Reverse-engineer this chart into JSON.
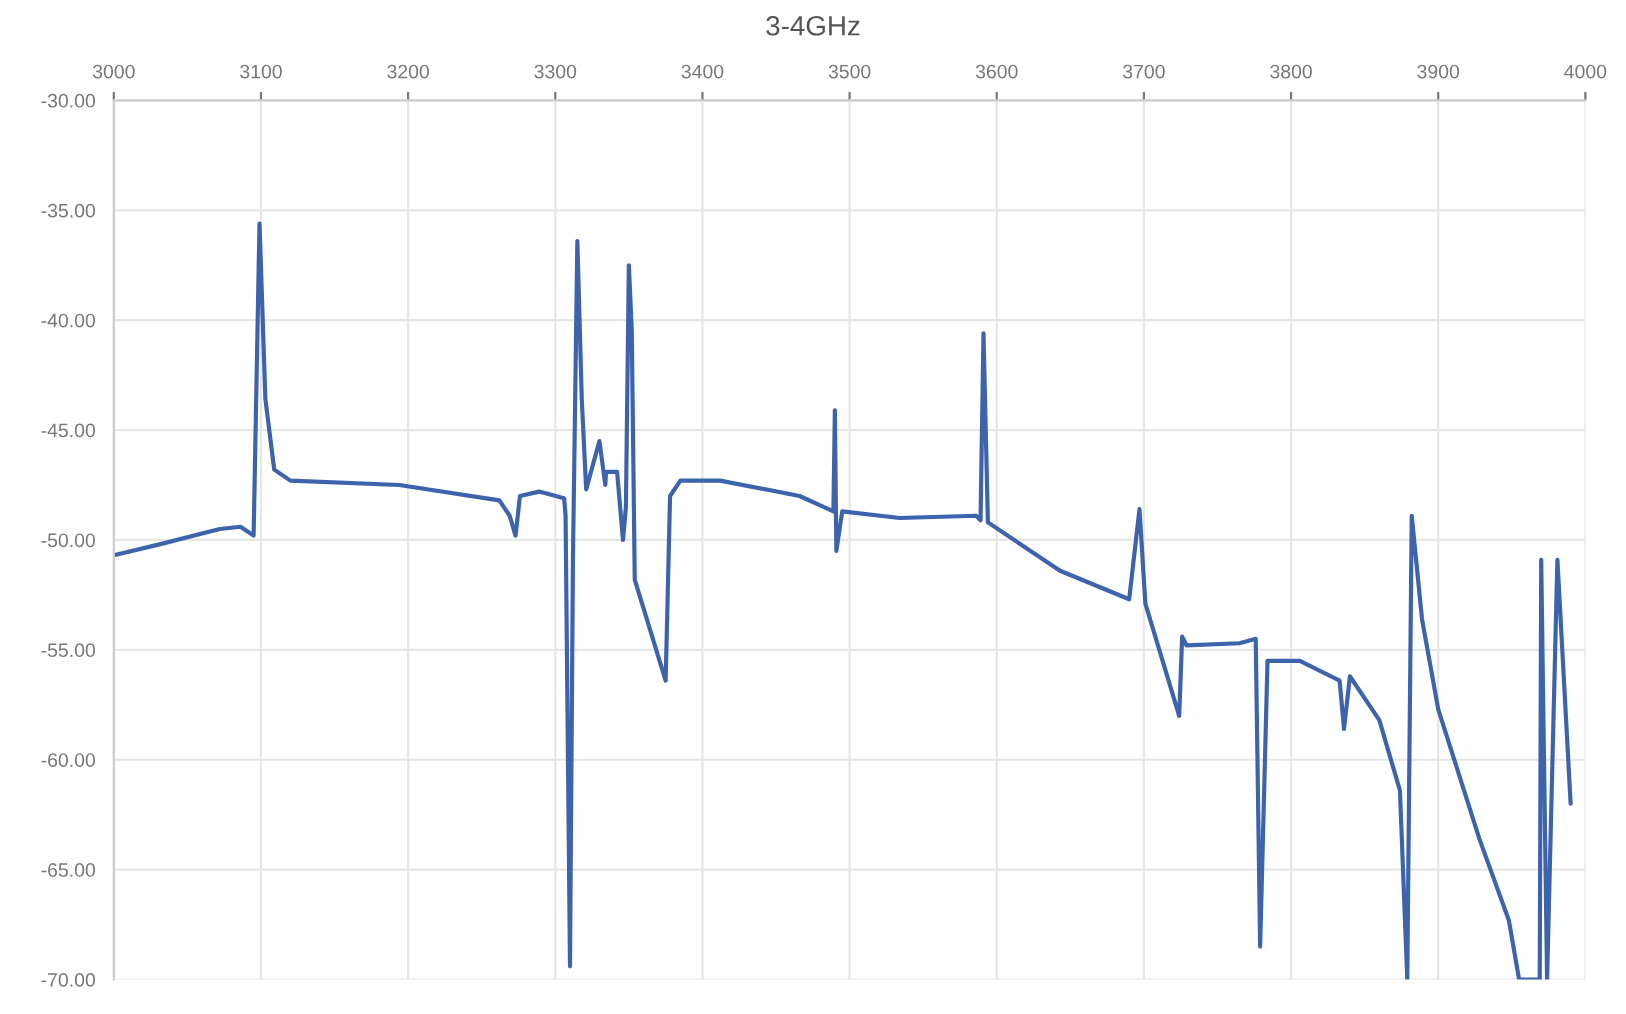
{
  "chart_data": {
    "type": "line",
    "title": "3-4GHz",
    "x": [
      3000,
      3031,
      3072,
      3086,
      3095,
      3099,
      3103,
      3109,
      3120,
      3194,
      3262,
      3269,
      3273,
      3276,
      3289,
      3306,
      3307,
      3310,
      3312,
      3315,
      3318,
      3321,
      3330,
      3334,
      3334.5,
      3342,
      3346,
      3348,
      3350,
      3352,
      3354,
      3375,
      3378,
      3385,
      3412,
      3466,
      3489,
      3490,
      3491,
      3495,
      3534,
      3586,
      3589,
      3591,
      3594,
      3643,
      3690,
      3697,
      3701,
      3724,
      3726,
      3729,
      3765,
      3776,
      3779,
      3784,
      3806,
      3833,
      3836,
      3840,
      3860,
      3874,
      3879,
      3882,
      3889,
      3900,
      3928,
      3948,
      3955,
      3969,
      3970,
      3974,
      3981,
      3990
    ],
    "series": [
      {
        "color": "#3d63ad",
        "values": [
          -50.7,
          -50.2,
          -49.5,
          -49.4,
          -49.8,
          -35.6,
          -43.6,
          -46.8,
          -47.3,
          -47.5,
          -48.2,
          -48.9,
          -49.8,
          -48.0,
          -47.8,
          -48.1,
          -48.9,
          -69.4,
          -50.9,
          -36.4,
          -43.6,
          -47.7,
          -45.5,
          -47.5,
          -46.9,
          -46.9,
          -50.0,
          -48.5,
          -37.5,
          -40.5,
          -51.8,
          -56.4,
          -48.0,
          -47.3,
          -47.3,
          -48.0,
          -48.7,
          -44.1,
          -50.5,
          -48.7,
          -49.0,
          -48.9,
          -49.1,
          -40.6,
          -49.2,
          -51.4,
          -52.7,
          -48.6,
          -52.9,
          -58.0,
          -54.4,
          -54.8,
          -54.7,
          -54.5,
          -68.5,
          -55.5,
          -55.5,
          -56.4,
          -58.6,
          -56.2,
          -58.2,
          -61.4,
          -70.0,
          -48.9,
          -53.6,
          -57.7,
          -63.6,
          -67.3,
          -70.0,
          -70.0,
          -50.9,
          -70.0,
          -50.9,
          -62.0
        ]
      }
    ],
    "xlim": [
      3000,
      4000
    ],
    "xticks": [
      3000,
      3100,
      3200,
      3300,
      3400,
      3500,
      3600,
      3700,
      3800,
      3900,
      4000
    ],
    "ylim": [
      -70,
      -30
    ],
    "yticks": [
      {
        "value": -30,
        "label": "-30.00"
      },
      {
        "value": -35,
        "label": "-35.00"
      },
      {
        "value": -40,
        "label": "-40.00"
      },
      {
        "value": -45,
        "label": "-45.00"
      },
      {
        "value": -50,
        "label": "-50.00"
      },
      {
        "value": -55,
        "label": "-55.00"
      },
      {
        "value": -60,
        "label": "-60.00"
      },
      {
        "value": -65,
        "label": "-65.00"
      },
      {
        "value": -70,
        "label": "-70.00"
      }
    ],
    "grid": true
  }
}
